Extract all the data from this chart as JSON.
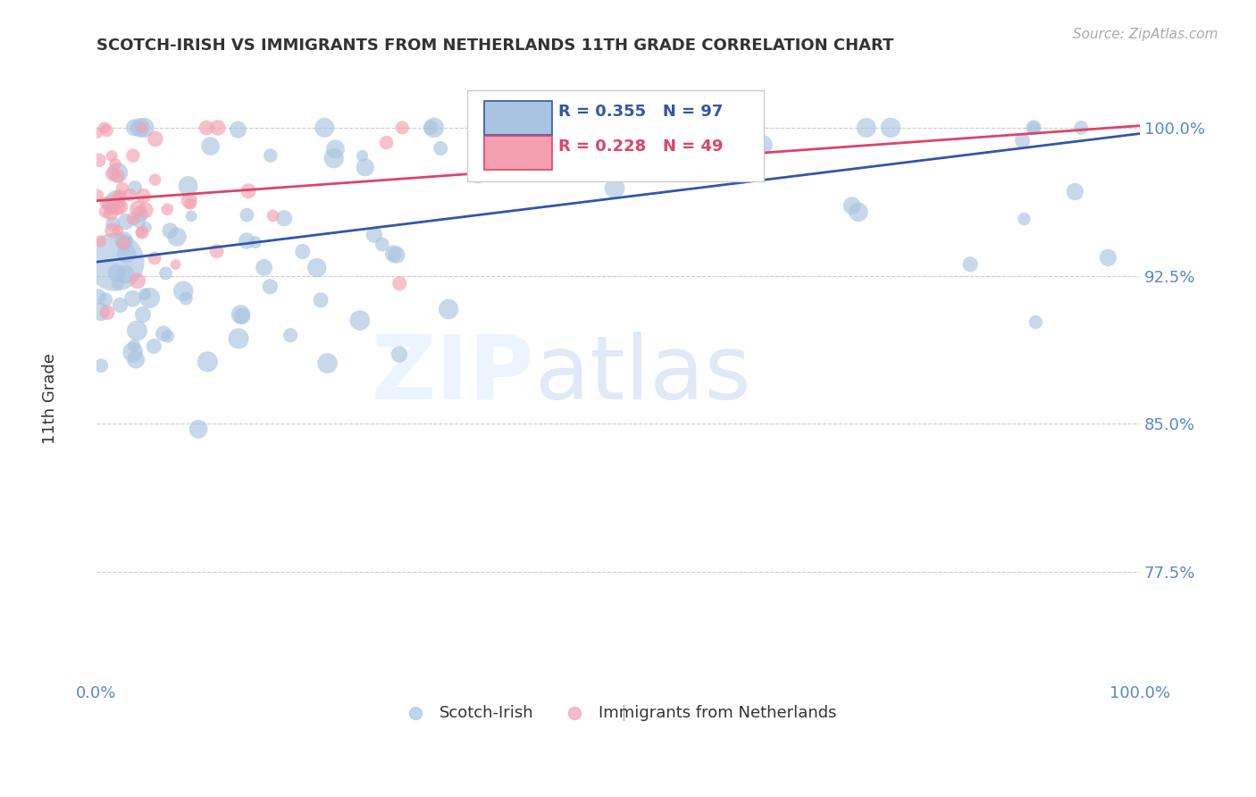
{
  "title": "SCOTCH-IRISH VS IMMIGRANTS FROM NETHERLANDS 11TH GRADE CORRELATION CHART",
  "source": "Source: ZipAtlas.com",
  "ylabel": "11th Grade",
  "ytick_labels": [
    "100.0%",
    "92.5%",
    "85.0%",
    "77.5%"
  ],
  "ytick_values": [
    1.0,
    0.925,
    0.85,
    0.775
  ],
  "xmin": 0.0,
  "xmax": 1.0,
  "ymin": 0.72,
  "ymax": 1.03,
  "blue_R": 0.355,
  "blue_N": 97,
  "pink_R": 0.228,
  "pink_N": 49,
  "legend_label_blue": "Scotch-Irish",
  "legend_label_pink": "Immigrants from Netherlands",
  "blue_color": "#a8c4e0",
  "pink_color": "#f4a0b0",
  "blue_line_color": "#3355aa",
  "pink_line_color": "#dd4466",
  "watermark_zip": "ZIP",
  "watermark_atlas": "atlas",
  "background_color": "#ffffff",
  "title_color": "#333333",
  "axis_color": "#5588cc",
  "grid_color": "#cccccc",
  "blue_intercept": 0.932,
  "blue_slope": 0.065,
  "pink_intercept": 0.963,
  "pink_slope": 0.038
}
